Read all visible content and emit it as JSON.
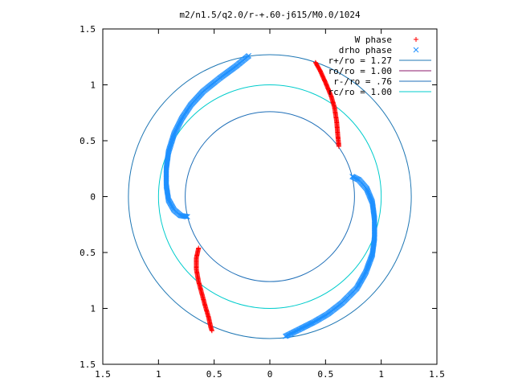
{
  "chart_data": {
    "type": "scatter",
    "title": "m2/n1.5/q2.0/r-+.60-j615/M0.0/1024",
    "xlim": [
      -1.5,
      1.5
    ],
    "ylim": [
      -1.5,
      1.5
    ],
    "x_ticks": [
      -1.5,
      -1,
      -0.5,
      0,
      0.5,
      1,
      1.5
    ],
    "x_tick_labels": [
      "1.5",
      "1",
      "0.5",
      "0",
      "0.5",
      "1",
      "1.5"
    ],
    "y_ticks": [
      1.5,
      1,
      0.5,
      0,
      -0.5,
      -1,
      -1.5
    ],
    "y_tick_labels": [
      "1.5",
      "1",
      "0.5",
      "0",
      "0.5",
      "1",
      "1.5"
    ],
    "grid": false,
    "legend_position": "top-right",
    "series": [
      {
        "name": "W phase",
        "kind": "points",
        "marker": "+",
        "color": "#ff0000",
        "arcs": [
          {
            "points": [
              [
                0.41,
                1.2
              ],
              [
                0.45,
                1.13
              ],
              [
                0.5,
                1.02
              ],
              [
                0.55,
                0.9
              ],
              [
                0.58,
                0.8
              ],
              [
                0.6,
                0.67
              ],
              [
                0.61,
                0.55
              ],
              [
                0.62,
                0.45
              ]
            ]
          },
          {
            "points": [
              [
                -0.64,
                -0.46
              ],
              [
                -0.66,
                -0.55
              ],
              [
                -0.66,
                -0.65
              ],
              [
                -0.64,
                -0.76
              ],
              [
                -0.61,
                -0.87
              ],
              [
                -0.58,
                -0.98
              ],
              [
                -0.55,
                -1.08
              ],
              [
                -0.53,
                -1.17
              ],
              [
                -0.52,
                -1.2
              ]
            ]
          }
        ]
      },
      {
        "name": "drho phase",
        "kind": "points",
        "marker": "x",
        "color": "#1e90ff",
        "arcs": [
          {
            "points": [
              [
                -0.19,
                1.26
              ],
              [
                -0.3,
                1.17
              ],
              [
                -0.45,
                1.06
              ],
              [
                -0.6,
                0.94
              ],
              [
                -0.71,
                0.82
              ],
              [
                -0.79,
                0.7
              ],
              [
                -0.86,
                0.56
              ],
              [
                -0.91,
                0.4
              ],
              [
                -0.93,
                0.25
              ],
              [
                -0.93,
                0.1
              ],
              [
                -0.91,
                -0.03
              ],
              [
                -0.86,
                -0.12
              ],
              [
                -0.8,
                -0.17
              ],
              [
                -0.74,
                -0.18
              ]
            ]
          },
          {
            "points": [
              [
                0.74,
                0.18
              ],
              [
                0.8,
                0.15
              ],
              [
                0.87,
                0.07
              ],
              [
                0.92,
                -0.05
              ],
              [
                0.94,
                -0.2
              ],
              [
                0.94,
                -0.37
              ],
              [
                0.92,
                -0.52
              ],
              [
                0.86,
                -0.68
              ],
              [
                0.78,
                -0.82
              ],
              [
                0.65,
                -0.95
              ],
              [
                0.52,
                -1.05
              ],
              [
                0.4,
                -1.12
              ],
              [
                0.28,
                -1.18
              ],
              [
                0.14,
                -1.25
              ]
            ]
          }
        ]
      },
      {
        "name": "r+/ro = 1.27",
        "kind": "circle",
        "radius": 1.27,
        "color": "#1f77b4"
      },
      {
        "name": "ro/ro = 1.00",
        "kind": "circle",
        "radius": 1.0,
        "color": "#8b1a6b",
        "hidden_in_plot": true
      },
      {
        "name": "r-/ro = .76",
        "kind": "circle",
        "radius": 0.76,
        "color": "#1f6fb8"
      },
      {
        "name": "rc/ro = 1.00",
        "kind": "circle",
        "radius": 1.0,
        "color": "#00cccc"
      }
    ]
  }
}
